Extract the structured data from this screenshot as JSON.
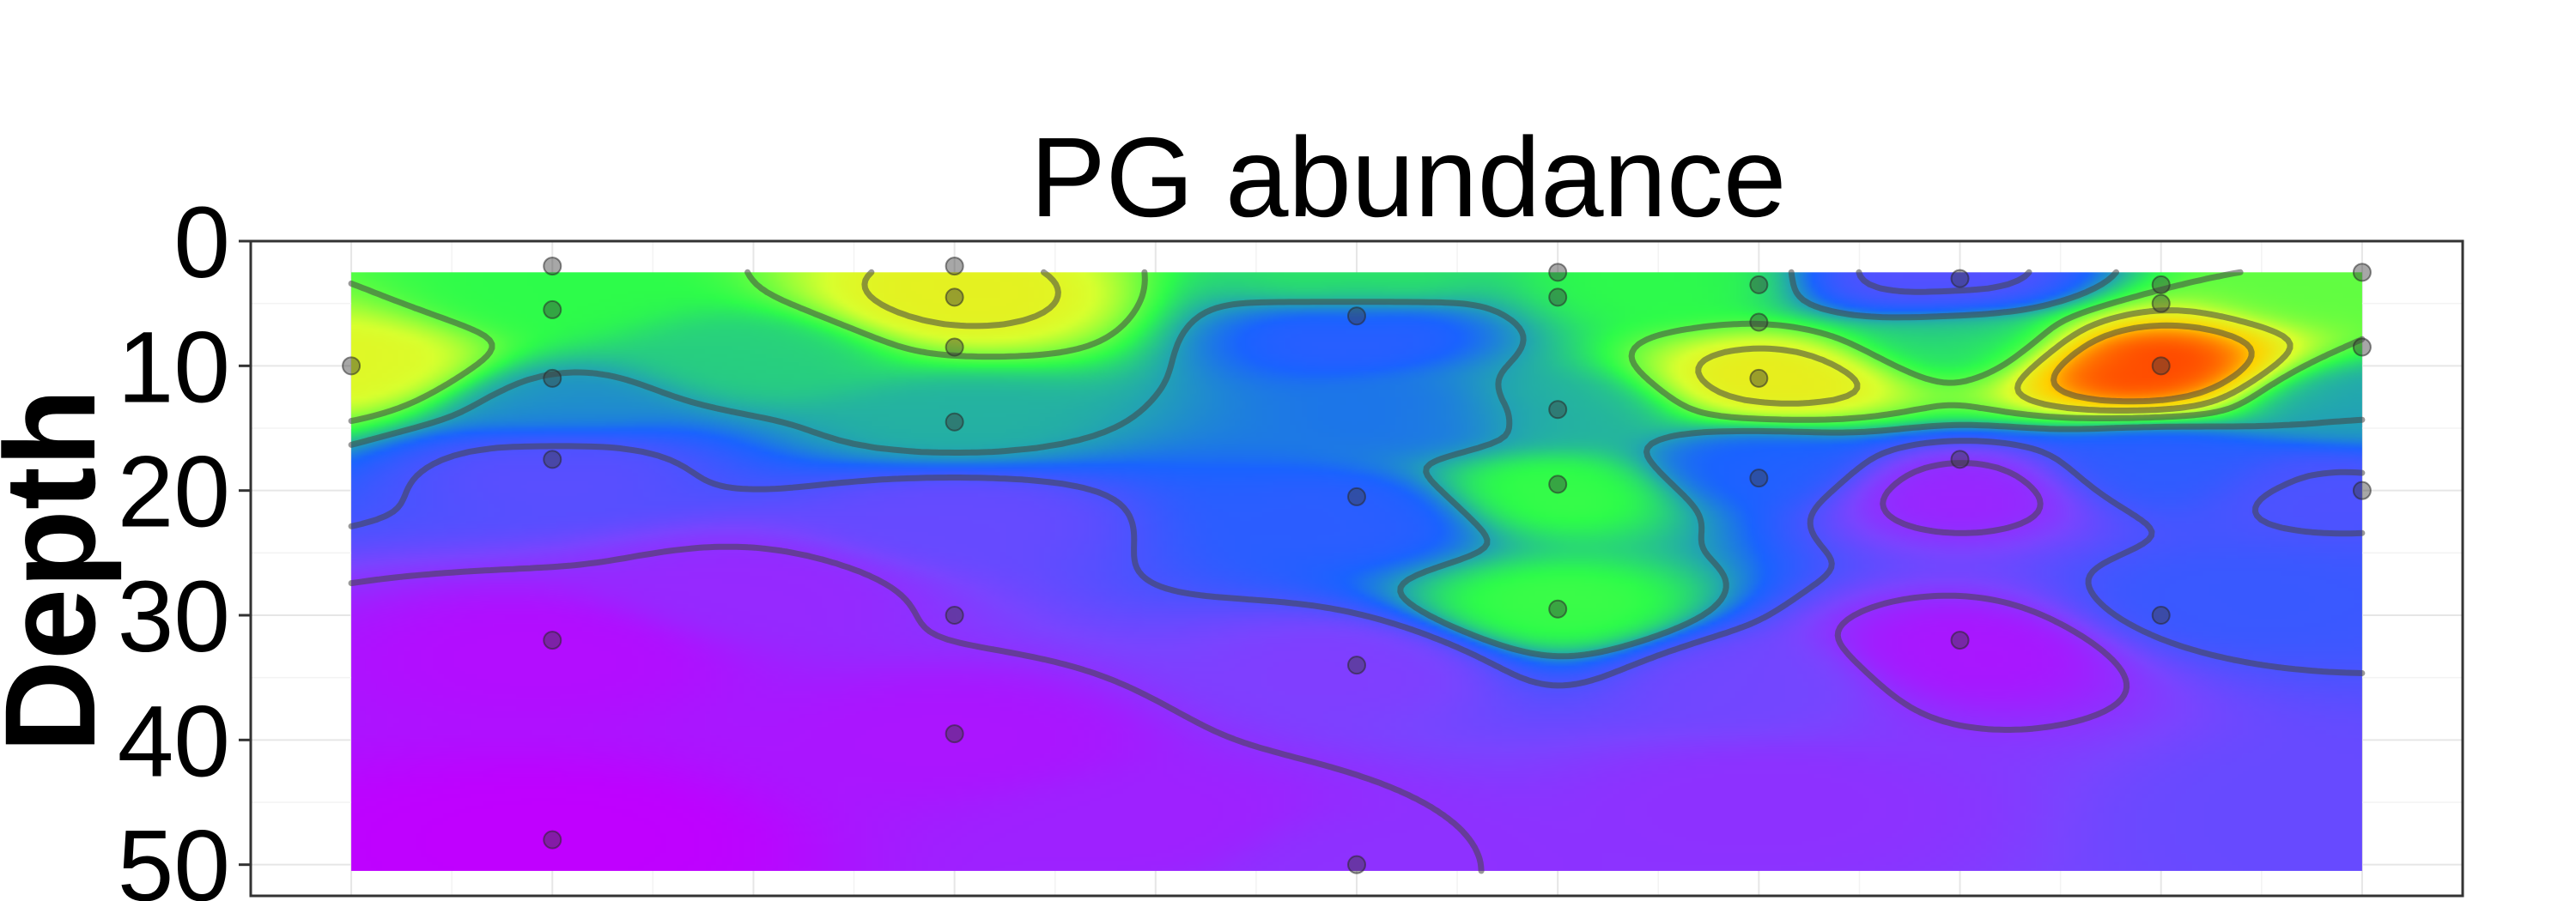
{
  "chart_data": {
    "type": "heatmap",
    "title": "PG abundance",
    "ylabel": "Depth",
    "xlabel": "",
    "y_tick_labels": [
      "0",
      "10",
      "20",
      "30",
      "40",
      "50"
    ],
    "y_ticks": [
      0,
      10,
      20,
      30,
      40,
      50
    ],
    "ylim": [
      0,
      52.5
    ],
    "xlim": [
      0,
      11
    ],
    "y_reversed": true,
    "grid": true,
    "data_extent": {
      "x": [
        0.5,
        10.5
      ],
      "y": [
        2.5,
        50.5
      ]
    },
    "colormap": [
      "#c000ff",
      "#7a44ff",
      "#1a63ff",
      "#2dfc4a",
      "#d9ff2e",
      "#ffd000",
      "#ff2a00"
    ],
    "sample_points": [
      {
        "x": 0.5,
        "y": 10
      },
      {
        "x": 1.5,
        "y": 2
      },
      {
        "x": 1.5,
        "y": 5.5
      },
      {
        "x": 1.5,
        "y": 11
      },
      {
        "x": 1.5,
        "y": 17.5
      },
      {
        "x": 1.5,
        "y": 32
      },
      {
        "x": 1.5,
        "y": 48
      },
      {
        "x": 3.5,
        "y": 2
      },
      {
        "x": 3.5,
        "y": 4.5
      },
      {
        "x": 3.5,
        "y": 8.5
      },
      {
        "x": 3.5,
        "y": 14.5
      },
      {
        "x": 3.5,
        "y": 30
      },
      {
        "x": 3.5,
        "y": 39.5
      },
      {
        "x": 5.5,
        "y": 6
      },
      {
        "x": 5.5,
        "y": 20.5
      },
      {
        "x": 5.5,
        "y": 34
      },
      {
        "x": 5.5,
        "y": 50
      },
      {
        "x": 6.5,
        "y": 2.5
      },
      {
        "x": 6.5,
        "y": 4.5
      },
      {
        "x": 6.5,
        "y": 13.5
      },
      {
        "x": 6.5,
        "y": 19.5
      },
      {
        "x": 6.5,
        "y": 29.5
      },
      {
        "x": 7.5,
        "y": 3.5
      },
      {
        "x": 7.5,
        "y": 6.5
      },
      {
        "x": 7.5,
        "y": 11
      },
      {
        "x": 7.5,
        "y": 19
      },
      {
        "x": 8.5,
        "y": 3
      },
      {
        "x": 8.5,
        "y": 17.5
      },
      {
        "x": 8.5,
        "y": 32
      },
      {
        "x": 9.5,
        "y": 3.5
      },
      {
        "x": 9.5,
        "y": 5
      },
      {
        "x": 9.5,
        "y": 10
      },
      {
        "x": 9.5,
        "y": 30
      },
      {
        "x": 10.5,
        "y": 2.5
      },
      {
        "x": 10.5,
        "y": 8.5
      },
      {
        "x": 10.5,
        "y": 20
      }
    ],
    "field_anchors": [
      {
        "x": 0.5,
        "y": 10,
        "value": 0.7
      },
      {
        "x": 3.5,
        "y": 4.5,
        "value": 0.72
      },
      {
        "x": 9.4,
        "y": 10,
        "value": 1.0
      },
      {
        "x": 7.6,
        "y": 11,
        "value": 0.75
      },
      {
        "x": 10.4,
        "y": 3,
        "value": 0.55
      },
      {
        "x": 1.5,
        "y": 4,
        "value": 0.5
      },
      {
        "x": 5.5,
        "y": 3,
        "value": 0.48
      },
      {
        "x": 7.0,
        "y": 3,
        "value": 0.5
      },
      {
        "x": 8.4,
        "y": 3,
        "value": 0.22
      },
      {
        "x": 5.5,
        "y": 7,
        "value": 0.3
      },
      {
        "x": 6.5,
        "y": 13.5,
        "value": 0.42
      },
      {
        "x": 6.5,
        "y": 20,
        "value": 0.52
      },
      {
        "x": 6.5,
        "y": 29.5,
        "value": 0.52
      },
      {
        "x": 5.8,
        "y": 14,
        "value": 0.35
      },
      {
        "x": 3.5,
        "y": 14.5,
        "value": 0.42
      },
      {
        "x": 1.5,
        "y": 13,
        "value": 0.38
      },
      {
        "x": 1.5,
        "y": 18,
        "value": 0.22
      },
      {
        "x": 3.5,
        "y": 22,
        "value": 0.2
      },
      {
        "x": 5.5,
        "y": 22,
        "value": 0.3
      },
      {
        "x": 5.5,
        "y": 34,
        "value": 0.15
      },
      {
        "x": 1.5,
        "y": 33,
        "value": 0.03
      },
      {
        "x": 1.5,
        "y": 48,
        "value": 0.0
      },
      {
        "x": 3.5,
        "y": 40,
        "value": 0.05
      },
      {
        "x": 2.5,
        "y": 28,
        "value": 0.1
      },
      {
        "x": 4.5,
        "y": 47,
        "value": 0.08
      },
      {
        "x": 5.5,
        "y": 50,
        "value": 0.12
      },
      {
        "x": 7.5,
        "y": 18,
        "value": 0.32
      },
      {
        "x": 8.5,
        "y": 20,
        "value": 0.08
      },
      {
        "x": 8.5,
        "y": 33,
        "value": 0.05
      },
      {
        "x": 9.5,
        "y": 18,
        "value": 0.3
      },
      {
        "x": 10.3,
        "y": 20,
        "value": 0.24
      },
      {
        "x": 9.8,
        "y": 29,
        "value": 0.28
      },
      {
        "x": 10.5,
        "y": 46,
        "value": 0.2
      },
      {
        "x": 7.5,
        "y": 45,
        "value": 0.12
      },
      {
        "x": 7.5,
        "y": 35,
        "value": 0.18
      },
      {
        "x": 10.5,
        "y": 13,
        "value": 0.4
      },
      {
        "x": 8.5,
        "y": 8,
        "value": 0.45
      },
      {
        "x": 2.5,
        "y": 9,
        "value": 0.45
      }
    ]
  }
}
